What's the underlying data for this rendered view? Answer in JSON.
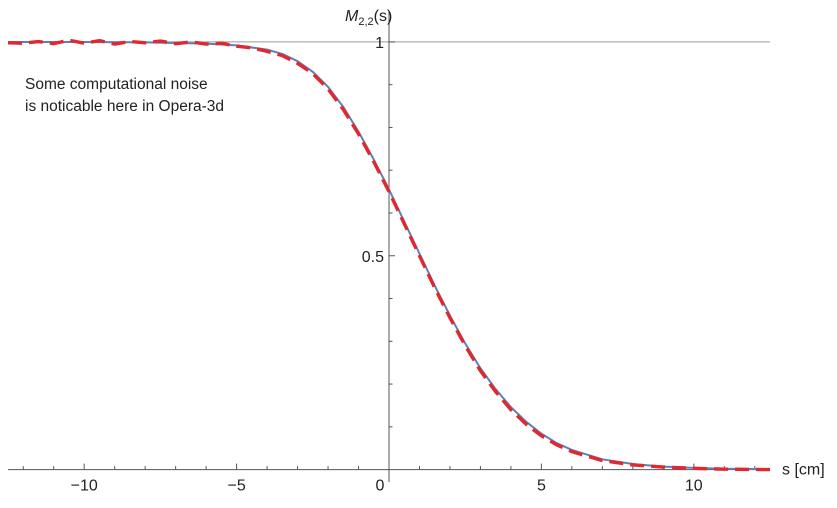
{
  "chart_data": {
    "type": "line",
    "title": "",
    "xlabel": "s [cm]",
    "ylabel": "M",
    "ylabel_sub": "2,2",
    "ylabel_arg": "(s)",
    "xlim": [
      -12.5,
      12.5
    ],
    "ylim": [
      -0.015,
      1.07
    ],
    "x_ticks": [
      -10,
      -5,
      0,
      5,
      10
    ],
    "x_tick_labels": [
      "−10",
      "−5",
      "0",
      "5",
      "10"
    ],
    "y_ticks": [
      0.5,
      1
    ],
    "y_tick_labels": [
      "0.5",
      "1"
    ],
    "reference_line_y": 1,
    "annotation": [
      "Some computational noise",
      "is noticable here in Opera-3d"
    ],
    "series": [
      {
        "color": "#5e81b5",
        "style": "solid",
        "x": [
          -12.5,
          -10,
          -8,
          -6,
          -5,
          -4,
          -3.5,
          -3,
          -2.5,
          -2,
          -1.5,
          -1,
          -0.5,
          0,
          0.5,
          1,
          1.5,
          2,
          2.5,
          3,
          3.5,
          4,
          4.5,
          5,
          5.5,
          6,
          7,
          8,
          9,
          10,
          11,
          12.5
        ],
        "y": [
          1.0,
          1.0,
          0.999,
          0.996,
          0.992,
          0.982,
          0.972,
          0.955,
          0.93,
          0.895,
          0.848,
          0.79,
          0.725,
          0.655,
          0.58,
          0.505,
          0.43,
          0.36,
          0.295,
          0.237,
          0.188,
          0.146,
          0.112,
          0.084,
          0.062,
          0.046,
          0.024,
          0.013,
          0.007,
          0.004,
          0.002,
          0.001
        ]
      },
      {
        "color": "#e0282e",
        "style": "dashed",
        "x": [
          -12.5,
          -12,
          -11.5,
          -11,
          -10.5,
          -10,
          -9.5,
          -9,
          -8.5,
          -8,
          -7.5,
          -7,
          -6.5,
          -6,
          -5.5,
          -5,
          -4.5,
          -4,
          -3.5,
          -3,
          -2.5,
          -2,
          -1.5,
          -1,
          -0.5,
          0,
          0.5,
          1,
          1.5,
          2,
          2.5,
          3,
          3.5,
          4,
          4.5,
          5,
          5.5,
          6,
          7,
          8,
          9,
          10,
          11,
          12.5
        ],
        "y": [
          0.998,
          0.997,
          1.001,
          0.996,
          1.004,
          0.997,
          1.003,
          0.995,
          1.001,
          0.998,
          1.002,
          0.996,
          1.0,
          0.995,
          0.997,
          0.99,
          0.986,
          0.978,
          0.968,
          0.95,
          0.926,
          0.89,
          0.842,
          0.785,
          0.72,
          0.65,
          0.575,
          0.5,
          0.425,
          0.355,
          0.29,
          0.231,
          0.182,
          0.14,
          0.106,
          0.079,
          0.058,
          0.042,
          0.021,
          0.011,
          0.006,
          0.003,
          0.001,
          0.0
        ]
      }
    ]
  }
}
